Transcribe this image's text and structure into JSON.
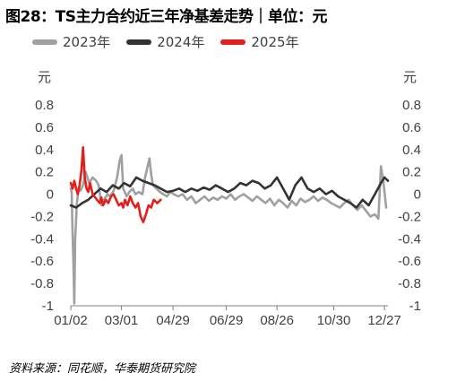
{
  "chart_title": "图28：TS主力合约近三年净基差走势｜单位：元",
  "source": "资料来源：同花顺，华泰期货研究院",
  "chart_data": {
    "type": "line",
    "y_unit_left": "元",
    "y_unit_right": "元",
    "ylim": [
      -1,
      0.8
    ],
    "y_ticks": [
      "0.8",
      "0.6",
      "0.4",
      "0.2",
      "0",
      "-0.2",
      "-0.4",
      "-0.6",
      "-0.8",
      "-1"
    ],
    "x_range": [
      "01-02",
      "12-31"
    ],
    "x_ticks": [
      {
        "label": "01/02",
        "date": "01-02"
      },
      {
        "label": "03/01",
        "date": "03-01"
      },
      {
        "label": "04/29",
        "date": "04-29"
      },
      {
        "label": "06/29",
        "date": "06-29"
      },
      {
        "label": "08/26",
        "date": "08-26"
      },
      {
        "label": "10/30",
        "date": "10-30"
      },
      {
        "label": "12/27",
        "date": "12-27"
      }
    ],
    "grid": false,
    "legend_position": "top",
    "series": [
      {
        "name": "2023年",
        "color": "#a0a0a0",
        "points": [
          [
            "01-02",
            0.05
          ],
          [
            "01-03",
            0.02
          ],
          [
            "01-04",
            -0.35
          ],
          [
            "01-05",
            -0.6
          ],
          [
            "01-06",
            -0.98
          ],
          [
            "01-07",
            -0.4
          ],
          [
            "01-09",
            -0.08
          ],
          [
            "01-11",
            0.05
          ],
          [
            "01-13",
            0.03
          ],
          [
            "01-16",
            0.08
          ],
          [
            "01-19",
            0.2
          ],
          [
            "01-23",
            0.1
          ],
          [
            "01-27",
            0.15
          ],
          [
            "01-31",
            0.12
          ],
          [
            "02-03",
            0.08
          ],
          [
            "02-06",
            -0.1
          ],
          [
            "02-09",
            -0.05
          ],
          [
            "02-13",
            0.0
          ],
          [
            "02-16",
            -0.02
          ],
          [
            "02-20",
            0.03
          ],
          [
            "02-24",
            0.15
          ],
          [
            "02-27",
            0.3
          ],
          [
            "03-01",
            0.35
          ],
          [
            "03-03",
            0.05
          ],
          [
            "03-07",
            -0.02
          ],
          [
            "03-10",
            0.02
          ],
          [
            "03-14",
            0.05
          ],
          [
            "03-17",
            0.0
          ],
          [
            "03-21",
            0.02
          ],
          [
            "03-25",
            0.0
          ],
          [
            "03-28",
            0.15
          ],
          [
            "03-31",
            0.25
          ],
          [
            "04-02",
            0.32
          ],
          [
            "04-04",
            0.18
          ],
          [
            "04-06",
            0.08
          ],
          [
            "04-10",
            0.05
          ],
          [
            "04-14",
            0.02
          ],
          [
            "04-18",
            0.0
          ],
          [
            "04-22",
            -0.02
          ],
          [
            "04-26",
            0.02
          ],
          [
            "04-30",
            0.0
          ],
          [
            "05-05",
            -0.02
          ],
          [
            "05-10",
            0.0
          ],
          [
            "05-15",
            -0.05
          ],
          [
            "05-20",
            -0.02
          ],
          [
            "05-25",
            -0.08
          ],
          [
            "05-30",
            -0.05
          ],
          [
            "06-04",
            -0.02
          ],
          [
            "06-09",
            -0.06
          ],
          [
            "06-14",
            -0.03
          ],
          [
            "06-19",
            -0.05
          ],
          [
            "06-24",
            -0.02
          ],
          [
            "06-29",
            -0.04
          ],
          [
            "07-04",
            0.0
          ],
          [
            "07-09",
            -0.05
          ],
          [
            "07-14",
            -0.02
          ],
          [
            "07-19",
            0.0
          ],
          [
            "07-24",
            -0.03
          ],
          [
            "07-29",
            -0.06
          ],
          [
            "08-03",
            -0.02
          ],
          [
            "08-08",
            -0.05
          ],
          [
            "08-13",
            -0.08
          ],
          [
            "08-18",
            -0.04
          ],
          [
            "08-23",
            -0.1
          ],
          [
            "08-28",
            -0.05
          ],
          [
            "09-02",
            -0.08
          ],
          [
            "09-07",
            -0.12
          ],
          [
            "09-12",
            -0.06
          ],
          [
            "09-17",
            -0.1
          ],
          [
            "09-22",
            -0.04
          ],
          [
            "09-27",
            -0.07
          ],
          [
            "10-02",
            -0.05
          ],
          [
            "10-07",
            -0.02
          ],
          [
            "10-12",
            -0.06
          ],
          [
            "10-17",
            -0.03
          ],
          [
            "10-22",
            -0.05
          ],
          [
            "10-27",
            -0.08
          ],
          [
            "11-01",
            -0.1
          ],
          [
            "11-06",
            -0.12
          ],
          [
            "11-11",
            -0.08
          ],
          [
            "11-16",
            -0.05
          ],
          [
            "11-21",
            -0.1
          ],
          [
            "11-26",
            -0.14
          ],
          [
            "12-01",
            -0.1
          ],
          [
            "12-06",
            -0.15
          ],
          [
            "12-11",
            -0.2
          ],
          [
            "12-16",
            -0.18
          ],
          [
            "12-20",
            -0.22
          ],
          [
            "12-23",
            0.25
          ],
          [
            "12-26",
            0.1
          ],
          [
            "12-29",
            -0.12
          ]
        ]
      },
      {
        "name": "2024年",
        "color": "#333333",
        "points": [
          [
            "01-02",
            -0.1
          ],
          [
            "01-08",
            -0.12
          ],
          [
            "01-15",
            -0.08
          ],
          [
            "01-22",
            -0.05
          ],
          [
            "01-29",
            0.0
          ],
          [
            "02-05",
            0.05
          ],
          [
            "02-12",
            0.02
          ],
          [
            "02-19",
            0.08
          ],
          [
            "02-26",
            0.05
          ],
          [
            "03-04",
            0.1
          ],
          [
            "03-11",
            0.07
          ],
          [
            "03-18",
            0.15
          ],
          [
            "03-25",
            0.12
          ],
          [
            "04-01",
            0.1
          ],
          [
            "04-08",
            0.08
          ],
          [
            "04-15",
            0.05
          ],
          [
            "04-22",
            0.02
          ],
          [
            "04-29",
            0.03
          ],
          [
            "05-06",
            0.05
          ],
          [
            "05-13",
            0.02
          ],
          [
            "05-20",
            0.05
          ],
          [
            "05-27",
            0.03
          ],
          [
            "06-03",
            0.06
          ],
          [
            "06-10",
            0.04
          ],
          [
            "06-17",
            0.08
          ],
          [
            "06-24",
            0.05
          ],
          [
            "07-01",
            0.02
          ],
          [
            "07-08",
            0.05
          ],
          [
            "07-15",
            0.1
          ],
          [
            "07-22",
            0.08
          ],
          [
            "07-29",
            0.12
          ],
          [
            "08-05",
            0.1
          ],
          [
            "08-12",
            0.05
          ],
          [
            "08-19",
            0.08
          ],
          [
            "08-26",
            0.15
          ],
          [
            "09-02",
            0.05
          ],
          [
            "09-09",
            -0.05
          ],
          [
            "09-16",
            0.08
          ],
          [
            "09-23",
            0.15
          ],
          [
            "09-30",
            0.05
          ],
          [
            "10-07",
            0.02
          ],
          [
            "10-14",
            0.05
          ],
          [
            "10-21",
            0.0
          ],
          [
            "10-28",
            0.03
          ],
          [
            "11-04",
            -0.02
          ],
          [
            "11-11",
            -0.05
          ],
          [
            "11-18",
            -0.08
          ],
          [
            "11-25",
            -0.12
          ],
          [
            "12-02",
            -0.05
          ],
          [
            "12-09",
            -0.1
          ],
          [
            "12-16",
            0.0
          ],
          [
            "12-23",
            0.1
          ],
          [
            "12-27",
            0.15
          ],
          [
            "12-31",
            0.12
          ]
        ]
      },
      {
        "name": "2025年",
        "color": "#e0201c",
        "points": [
          [
            "01-02",
            0.1
          ],
          [
            "01-04",
            0.05
          ],
          [
            "01-06",
            0.12
          ],
          [
            "01-08",
            0.05
          ],
          [
            "01-10",
            0.0
          ],
          [
            "01-12",
            0.08
          ],
          [
            "01-14",
            0.2
          ],
          [
            "01-16",
            0.42
          ],
          [
            "01-18",
            0.15
          ],
          [
            "01-20",
            0.05
          ],
          [
            "01-22",
            0.02
          ],
          [
            "01-24",
            0.1
          ],
          [
            "01-27",
            0.0
          ],
          [
            "02-04",
            -0.08
          ],
          [
            "02-06",
            -0.03
          ],
          [
            "02-08",
            -0.1
          ],
          [
            "02-11",
            -0.05
          ],
          [
            "02-14",
            -0.08
          ],
          [
            "02-17",
            -0.02
          ],
          [
            "02-20",
            0.0
          ],
          [
            "02-23",
            -0.05
          ],
          [
            "02-26",
            -0.1
          ],
          [
            "03-01",
            -0.08
          ],
          [
            "03-03",
            -0.12
          ],
          [
            "03-05",
            -0.05
          ],
          [
            "03-08",
            -0.1
          ],
          [
            "03-11",
            -0.02
          ],
          [
            "03-14",
            -0.08
          ],
          [
            "03-17",
            -0.12
          ],
          [
            "03-20",
            -0.08
          ],
          [
            "03-23",
            -0.2
          ],
          [
            "03-26",
            -0.25
          ],
          [
            "03-29",
            -0.18
          ],
          [
            "04-01",
            -0.1
          ],
          [
            "04-04",
            -0.12
          ],
          [
            "04-07",
            -0.05
          ],
          [
            "04-11",
            -0.08
          ],
          [
            "04-15",
            -0.05
          ]
        ]
      }
    ]
  }
}
